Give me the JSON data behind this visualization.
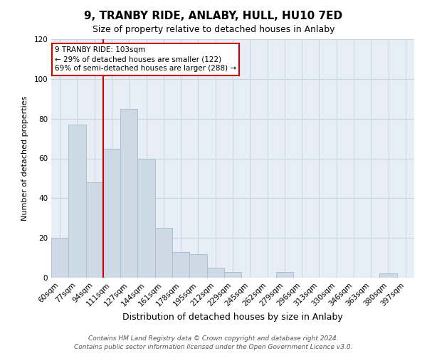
{
  "title": "9, TRANBY RIDE, ANLABY, HULL, HU10 7ED",
  "subtitle": "Size of property relative to detached houses in Anlaby",
  "xlabel": "Distribution of detached houses by size in Anlaby",
  "ylabel": "Number of detached properties",
  "bar_color": "#cdd9e5",
  "bar_edge_color": "#aabfcf",
  "categories": [
    "60sqm",
    "77sqm",
    "94sqm",
    "111sqm",
    "127sqm",
    "144sqm",
    "161sqm",
    "178sqm",
    "195sqm",
    "212sqm",
    "229sqm",
    "245sqm",
    "262sqm",
    "279sqm",
    "296sqm",
    "313sqm",
    "330sqm",
    "346sqm",
    "363sqm",
    "380sqm",
    "397sqm"
  ],
  "values": [
    20,
    77,
    48,
    65,
    85,
    60,
    25,
    13,
    12,
    5,
    3,
    0,
    0,
    3,
    0,
    0,
    0,
    0,
    0,
    2,
    0
  ],
  "vline_x": 2.5,
  "vline_color": "#cc0000",
  "ylim": [
    0,
    120
  ],
  "yticks": [
    0,
    20,
    40,
    60,
    80,
    100,
    120
  ],
  "annotation_text": "9 TRANBY RIDE: 103sqm\n← 29% of detached houses are smaller (122)\n69% of semi-detached houses are larger (288) →",
  "annotation_box_color": "#ffffff",
  "annotation_box_edge": "#cc0000",
  "footer1": "Contains HM Land Registry data © Crown copyright and database right 2024.",
  "footer2": "Contains public sector information licensed under the Open Government Licence v3.0.",
  "background_color": "#ffffff",
  "plot_bg_color": "#e8eef5",
  "grid_color": "#c8d4de",
  "title_fontsize": 11,
  "subtitle_fontsize": 9,
  "xlabel_fontsize": 9,
  "ylabel_fontsize": 8,
  "tick_fontsize": 7.5,
  "annotation_fontsize": 7.5,
  "footer_fontsize": 6.5
}
